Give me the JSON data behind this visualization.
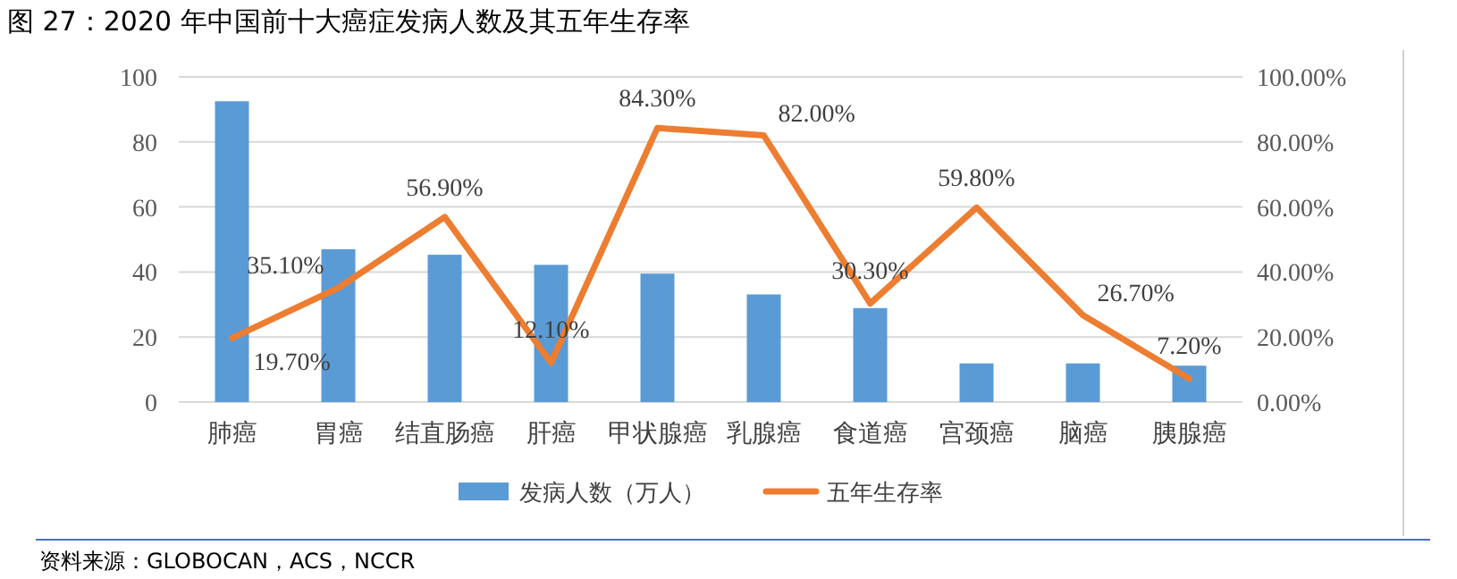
{
  "chart_data": {
    "type": "bar",
    "title": "图 27：2020 年中国前十大癌症发病人数及其五年生存率",
    "categories": [
      "肺癌",
      "胃癌",
      "结直肠癌",
      "肝癌",
      "甲状腺癌",
      "乳腺癌",
      "食道癌",
      "宫颈癌",
      "脑癌",
      "胰腺癌"
    ],
    "series": [
      {
        "name": "发病人数（万人）",
        "color": "#5b9bd5",
        "values": [
          92.5,
          47,
          45.3,
          42.2,
          39.5,
          33.1,
          28.9,
          11.9,
          11.9,
          11.2
        ]
      },
      {
        "name": "五年生存率",
        "type": "line",
        "axis": "y2",
        "color": "#ed7d31",
        "values": [
          19.7,
          35.1,
          56.9,
          12.1,
          84.3,
          82.0,
          30.3,
          59.8,
          26.7,
          7.2
        ],
        "value_labels": [
          "19.70%",
          "35.10%",
          "56.90%",
          "12.10%",
          "84.30%",
          "82.00%",
          "30.30%",
          "59.80%",
          "26.70%",
          "7.20%"
        ]
      }
    ],
    "ylim": [
      0,
      100
    ],
    "yticks": [
      0,
      20,
      40,
      60,
      80,
      100
    ],
    "y2lim": [
      0,
      100
    ],
    "y2ticks": [
      {
        "value": 0,
        "label": "0.00%"
      },
      {
        "value": 20,
        "label": "20.00%"
      },
      {
        "value": 40,
        "label": "40.00%"
      },
      {
        "value": 60,
        "label": "60.00%"
      },
      {
        "value": 80,
        "label": "80.00%"
      },
      {
        "value": 100,
        "label": "100.00%"
      }
    ],
    "grid": "y",
    "legend": "bottom",
    "annotations": [
      "资料来源：GLOBOCAN，ACS，NCCR"
    ]
  }
}
